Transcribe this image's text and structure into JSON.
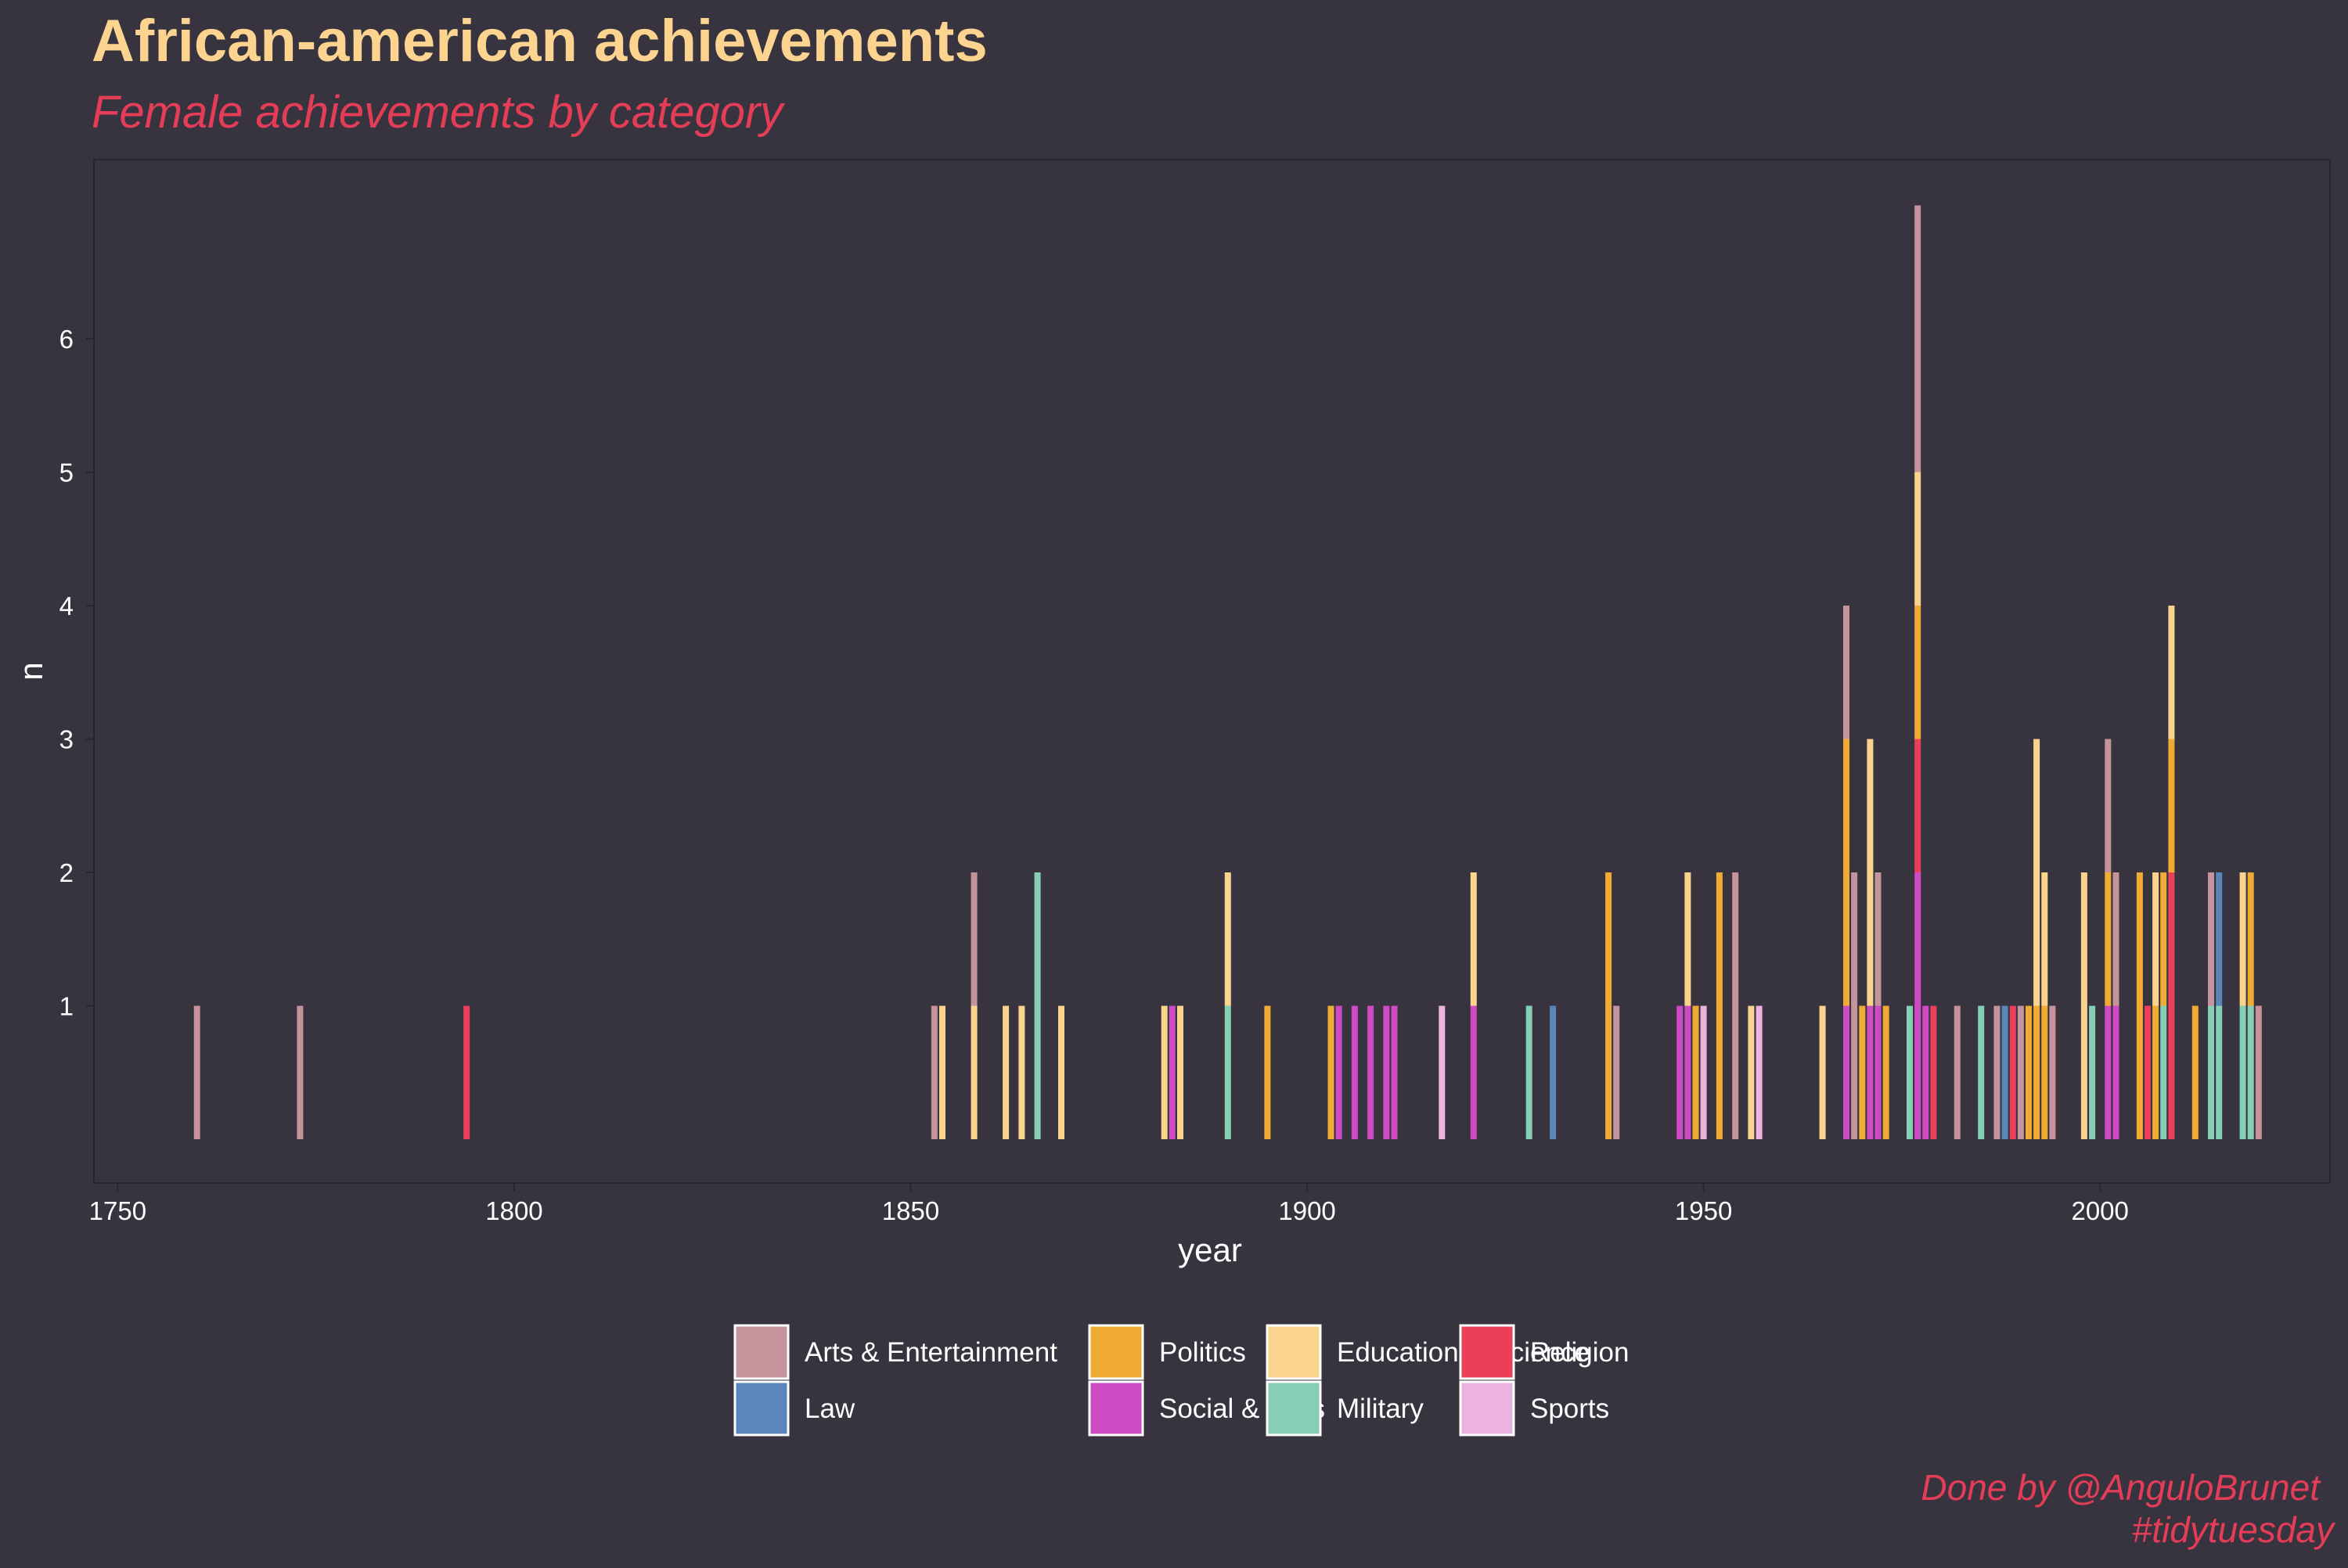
{
  "chart_data": {
    "type": "bar",
    "stacked": true,
    "title": "African-american achievements",
    "subtitle": "Female achievements by category",
    "xlabel": "year",
    "ylabel": "n",
    "xlim": [
      1747,
      2029
    ],
    "ylim": [
      0,
      7.7
    ],
    "x_ticks": [
      1750,
      1800,
      1850,
      1900,
      1950,
      2000
    ],
    "y_ticks": [
      1,
      2,
      3,
      4,
      5,
      6
    ],
    "grid": false,
    "legend_position": "bottom",
    "caption_lines": [
      "Done by @AnguloBrunet",
      "#tidytuesday"
    ],
    "categories": [
      "Arts & Entertainment",
      "Law",
      "Politics",
      "Social & Jobs",
      "Education & Science",
      "Military",
      "Religion",
      "Sports"
    ],
    "colors": {
      "Arts & Entertainment": "#c4939b",
      "Education & Science": "#fad48d",
      "Law": "#5b86b9",
      "Military": "#86cfb4",
      "Politics": "#f0ab33",
      "Religion": "#ea3f58",
      "Social & Jobs": "#cf4ac5",
      "Sports": "#ecb2e0"
    },
    "data": [
      {
        "year": 1760,
        "segments": [
          [
            "Arts & Entertainment",
            1
          ]
        ]
      },
      {
        "year": 1773,
        "segments": [
          [
            "Arts & Entertainment",
            1
          ]
        ]
      },
      {
        "year": 1794,
        "segments": [
          [
            "Religion",
            1
          ]
        ]
      },
      {
        "year": 1853,
        "segments": [
          [
            "Arts & Entertainment",
            1
          ]
        ]
      },
      {
        "year": 1854,
        "segments": [
          [
            "Education & Science",
            1
          ]
        ]
      },
      {
        "year": 1858,
        "segments": [
          [
            "Education & Science",
            1
          ],
          [
            "Arts & Entertainment",
            1
          ]
        ]
      },
      {
        "year": 1862,
        "segments": [
          [
            "Education & Science",
            1
          ]
        ]
      },
      {
        "year": 1864,
        "segments": [
          [
            "Education & Science",
            1
          ]
        ]
      },
      {
        "year": 1866,
        "segments": [
          [
            "Military",
            2
          ]
        ]
      },
      {
        "year": 1869,
        "segments": [
          [
            "Education & Science",
            1
          ]
        ]
      },
      {
        "year": 1882,
        "segments": [
          [
            "Education & Science",
            1
          ]
        ]
      },
      {
        "year": 1883,
        "segments": [
          [
            "Social & Jobs",
            1
          ]
        ]
      },
      {
        "year": 1884,
        "segments": [
          [
            "Education & Science",
            1
          ]
        ]
      },
      {
        "year": 1890,
        "segments": [
          [
            "Military",
            1
          ],
          [
            "Education & Science",
            1
          ]
        ]
      },
      {
        "year": 1895,
        "segments": [
          [
            "Politics",
            1
          ]
        ]
      },
      {
        "year": 1903,
        "segments": [
          [
            "Politics",
            1
          ]
        ]
      },
      {
        "year": 1904,
        "segments": [
          [
            "Social & Jobs",
            1
          ]
        ]
      },
      {
        "year": 1906,
        "segments": [
          [
            "Social & Jobs",
            1
          ]
        ]
      },
      {
        "year": 1908,
        "segments": [
          [
            "Social & Jobs",
            1
          ]
        ]
      },
      {
        "year": 1910,
        "segments": [
          [
            "Social & Jobs",
            1
          ]
        ]
      },
      {
        "year": 1911,
        "segments": [
          [
            "Social & Jobs",
            1
          ]
        ]
      },
      {
        "year": 1917,
        "segments": [
          [
            "Sports",
            1
          ]
        ]
      },
      {
        "year": 1921,
        "segments": [
          [
            "Social & Jobs",
            1
          ],
          [
            "Education & Science",
            1
          ]
        ]
      },
      {
        "year": 1928,
        "segments": [
          [
            "Military",
            1
          ]
        ]
      },
      {
        "year": 1931,
        "segments": [
          [
            "Law",
            1
          ]
        ]
      },
      {
        "year": 1938,
        "segments": [
          [
            "Politics",
            2
          ]
        ]
      },
      {
        "year": 1939,
        "segments": [
          [
            "Arts & Entertainment",
            1
          ]
        ]
      },
      {
        "year": 1947,
        "segments": [
          [
            "Social & Jobs",
            1
          ]
        ]
      },
      {
        "year": 1948,
        "segments": [
          [
            "Social & Jobs",
            1
          ],
          [
            "Education & Science",
            1
          ]
        ]
      },
      {
        "year": 1949,
        "segments": [
          [
            "Politics",
            1
          ]
        ]
      },
      {
        "year": 1950,
        "segments": [
          [
            "Sports",
            1
          ]
        ]
      },
      {
        "year": 1952,
        "segments": [
          [
            "Politics",
            2
          ]
        ]
      },
      {
        "year": 1954,
        "segments": [
          [
            "Arts & Entertainment",
            2
          ]
        ]
      },
      {
        "year": 1956,
        "segments": [
          [
            "Education & Science",
            1
          ]
        ]
      },
      {
        "year": 1957,
        "segments": [
          [
            "Sports",
            1
          ]
        ]
      },
      {
        "year": 1965,
        "segments": [
          [
            "Education & Science",
            1
          ]
        ]
      },
      {
        "year": 1968,
        "segments": [
          [
            "Social & Jobs",
            1
          ],
          [
            "Politics",
            2
          ],
          [
            "Arts & Entertainment",
            1
          ]
        ]
      },
      {
        "year": 1969,
        "segments": [
          [
            "Arts & Entertainment",
            2
          ]
        ]
      },
      {
        "year": 1970,
        "segments": [
          [
            "Politics",
            1
          ]
        ]
      },
      {
        "year": 1971,
        "segments": [
          [
            "Social & Jobs",
            1
          ],
          [
            "Education & Science",
            2
          ]
        ]
      },
      {
        "year": 1972,
        "segments": [
          [
            "Social & Jobs",
            1
          ],
          [
            "Arts & Entertainment",
            1
          ]
        ]
      },
      {
        "year": 1973,
        "segments": [
          [
            "Politics",
            1
          ]
        ]
      },
      {
        "year": 1976,
        "segments": [
          [
            "Military",
            1
          ]
        ]
      },
      {
        "year": 1977,
        "segments": [
          [
            "Social & Jobs",
            2
          ],
          [
            "Religion",
            1
          ],
          [
            "Politics",
            1
          ],
          [
            "Education & Science",
            1
          ],
          [
            "Arts & Entertainment",
            2
          ]
        ]
      },
      {
        "year": 1978,
        "segments": [
          [
            "Social & Jobs",
            1
          ]
        ]
      },
      {
        "year": 1979,
        "segments": [
          [
            "Religion",
            1
          ]
        ]
      },
      {
        "year": 1982,
        "segments": [
          [
            "Arts & Entertainment",
            1
          ]
        ]
      },
      {
        "year": 1985,
        "segments": [
          [
            "Military",
            1
          ]
        ]
      },
      {
        "year": 1987,
        "segments": [
          [
            "Arts & Entertainment",
            1
          ]
        ]
      },
      {
        "year": 1988,
        "segments": [
          [
            "Law",
            1
          ]
        ]
      },
      {
        "year": 1989,
        "segments": [
          [
            "Religion",
            1
          ]
        ]
      },
      {
        "year": 1990,
        "segments": [
          [
            "Arts & Entertainment",
            1
          ]
        ]
      },
      {
        "year": 1991,
        "segments": [
          [
            "Politics",
            1
          ]
        ]
      },
      {
        "year": 1992,
        "segments": [
          [
            "Politics",
            1
          ],
          [
            "Education & Science",
            2
          ]
        ]
      },
      {
        "year": 1993,
        "segments": [
          [
            "Politics",
            1
          ],
          [
            "Education & Science",
            1
          ]
        ]
      },
      {
        "year": 1994,
        "segments": [
          [
            "Arts & Entertainment",
            1
          ]
        ]
      },
      {
        "year": 1998,
        "segments": [
          [
            "Education & Science",
            2
          ]
        ]
      },
      {
        "year": 1999,
        "segments": [
          [
            "Military",
            1
          ]
        ]
      },
      {
        "year": 2001,
        "segments": [
          [
            "Social & Jobs",
            1
          ],
          [
            "Politics",
            1
          ],
          [
            "Arts & Entertainment",
            1
          ]
        ]
      },
      {
        "year": 2002,
        "segments": [
          [
            "Social & Jobs",
            1
          ],
          [
            "Arts & Entertainment",
            1
          ]
        ]
      },
      {
        "year": 2005,
        "segments": [
          [
            "Politics",
            2
          ]
        ]
      },
      {
        "year": 2006,
        "segments": [
          [
            "Religion",
            1
          ]
        ]
      },
      {
        "year": 2007,
        "segments": [
          [
            "Politics",
            1
          ],
          [
            "Education & Science",
            1
          ]
        ]
      },
      {
        "year": 2008,
        "segments": [
          [
            "Military",
            1
          ],
          [
            "Politics",
            1
          ]
        ]
      },
      {
        "year": 2009,
        "segments": [
          [
            "Religion",
            2
          ],
          [
            "Politics",
            1
          ],
          [
            "Education & Science",
            1
          ]
        ]
      },
      {
        "year": 2012,
        "segments": [
          [
            "Politics",
            1
          ]
        ]
      },
      {
        "year": 2014,
        "segments": [
          [
            "Military",
            1
          ],
          [
            "Arts & Entertainment",
            1
          ]
        ]
      },
      {
        "year": 2015,
        "segments": [
          [
            "Military",
            1
          ],
          [
            "Law",
            1
          ]
        ]
      },
      {
        "year": 2018,
        "segments": [
          [
            "Military",
            1
          ],
          [
            "Education & Science",
            1
          ]
        ]
      },
      {
        "year": 2019,
        "segments": [
          [
            "Military",
            1
          ],
          [
            "Politics",
            1
          ]
        ]
      },
      {
        "year": 2020,
        "segments": [
          [
            "Arts & Entertainment",
            1
          ]
        ]
      }
    ]
  }
}
